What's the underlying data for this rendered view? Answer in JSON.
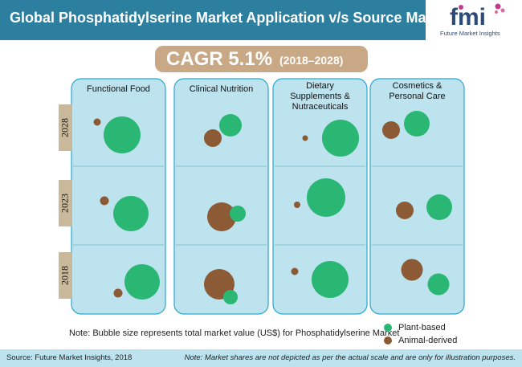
{
  "header": {
    "title": "Global Phosphatidylserine Market Application v/s Source Matrix",
    "logo_text": "fmi",
    "logo_subtext": "Future Market Insights"
  },
  "cagr": {
    "label": "CAGR 5.1%",
    "period": "(2018–2028)"
  },
  "colors": {
    "header": "#2d7fa0",
    "column_fill": "#bde3ef",
    "column_border": "#2aa7cf",
    "year_band": "#c9b89a",
    "plant": "#2ab673",
    "animal": "#8c5a34",
    "logo_magenta": "#c43a8a",
    "logo_navy": "#2b4a7a"
  },
  "note": "Note: Bubble size represents total market value (US$) for Phosphatidylserine Market",
  "footer": {
    "source": "Source: Future Market Insights, 2018",
    "disclaimer": "Note: Market shares are not depicted as per the actual scale and are only for illustration purposes."
  },
  "chart_data": {
    "type": "bubble-matrix",
    "title": "Global Phosphatidylserine Market Application v/s Source Matrix",
    "columns": [
      [
        "Functional Food"
      ],
      [
        "Clinical Nutrition"
      ],
      [
        "Dietary",
        "Supplements &",
        "Nutraceuticals"
      ],
      [
        "Cosmetics &",
        "Personal Care"
      ]
    ],
    "rows": [
      "2028",
      "2023",
      "2018"
    ],
    "series": [
      {
        "name": "Plant-based",
        "color": "#2ab673"
      },
      {
        "name": "Animal-derived",
        "color": "#8c5a34"
      }
    ],
    "size_note": "Bubble size represents total market value (US$)",
    "cells": [
      [
        {
          "plant": 23,
          "animal": 4.5
        },
        {
          "plant": 14,
          "animal": 11
        },
        {
          "plant": 23,
          "animal": 3.5
        },
        {
          "plant": 16,
          "animal": 11
        }
      ],
      [
        {
          "plant": 22,
          "animal": 5.5
        },
        {
          "plant": 10,
          "animal": 18
        },
        {
          "plant": 24,
          "animal": 4
        },
        {
          "plant": 16,
          "animal": 11
        }
      ],
      [
        {
          "plant": 22,
          "animal": 5.5
        },
        {
          "plant": 9,
          "animal": 19
        },
        {
          "plant": 23,
          "animal": 4.5
        },
        {
          "plant": 13.5,
          "animal": 13.5
        }
      ]
    ]
  }
}
